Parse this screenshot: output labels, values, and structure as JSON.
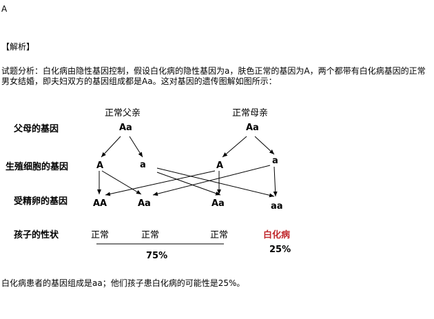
{
  "answer": "A",
  "analysis_title": "【解析】",
  "analysis_text": "试题分析：白化病由隐性基因控制，假设白化病的隐性基因为a，肤色正常的基因为A，两个都带有白化病基因的正常男女结婚，即夫妇双方的基因组成都是Aa。这对基因的遗传图解如图所示：",
  "diagram": {
    "row_labels": [
      "父母的基因",
      "生殖细胞的基因",
      "受精卵的基因",
      "孩子的性状"
    ],
    "father": {
      "title": "正常父亲",
      "genotype": "Aa"
    },
    "mother": {
      "title": "正常母亲",
      "genotype": "Aa"
    },
    "gametes": [
      "A",
      "a",
      "A",
      "a"
    ],
    "zygotes": [
      "AA",
      "Aa",
      "Aa",
      "aa"
    ],
    "phenotypes": [
      "正常",
      "正常",
      "正常",
      "白化病"
    ],
    "normal_ratio": "75%",
    "albino_ratio": "25%",
    "albino_color": "#c0282d"
  },
  "conclusion": "白化病患者的基因组成是aa；他们孩子患白化病的可能性是25%。"
}
